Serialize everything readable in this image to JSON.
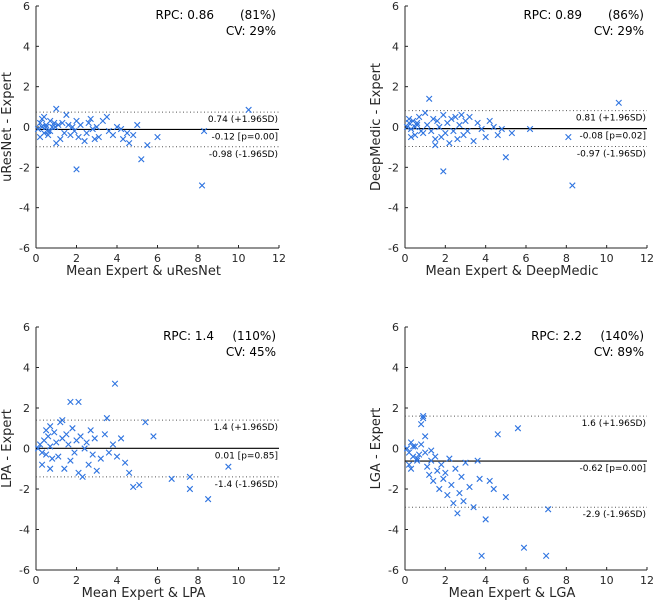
{
  "colors": {
    "marker": "#2F74E0",
    "axis": "#262626",
    "bias_line": "#000000"
  },
  "chart_data": [
    {
      "type": "scatter",
      "title": "",
      "xlabel": "Mean Expert & uResNet",
      "ylabel": "uResNet - Expert",
      "xlim": [
        0,
        12
      ],
      "ylim": [
        -6,
        6
      ],
      "xticks": [
        0,
        2,
        4,
        6,
        8,
        10,
        12
      ],
      "yticks": [
        -6,
        -4,
        -2,
        0,
        2,
        4,
        6
      ],
      "stats": {
        "rpc": "RPC: 0.86",
        "rpc_pct": "(81%)",
        "cv": "CV: 29%"
      },
      "upper": {
        "value": 0.74,
        "label": "0.74 (+1.96SD)"
      },
      "mean": {
        "value": -0.12,
        "label": "-0.12 [p=0.00]"
      },
      "lower": {
        "value": -0.98,
        "label": "-0.98 (-1.96SD)"
      },
      "series": [
        {
          "x": [
            0.1,
            0.2,
            0.3,
            0.4,
            0.5,
            0.6,
            0.7,
            0.8,
            0.2,
            0.3,
            0.5,
            0.6,
            0.9,
            1.0,
            1.1,
            1.2,
            0.4,
            0.7,
            1.3,
            1.4,
            1.5,
            1.6,
            1.7,
            1.8,
            1.0,
            0.95,
            1.9,
            2.0,
            2.1,
            2.2,
            2.4,
            2.5,
            2.6,
            2.7,
            2.8,
            2.9,
            3.0,
            3.1,
            3.3,
            3.5,
            3.6,
            3.8,
            4.0,
            4.2,
            4.3,
            4.5,
            4.6,
            4.8,
            5.0,
            5.2,
            5.5,
            6.0,
            8.3,
            8.2,
            10.5,
            2.0
          ],
          "y": [
            -0.1,
            0.2,
            0.0,
            -0.3,
            0.1,
            -0.2,
            0.3,
            0.0,
            -0.5,
            0.4,
            0.0,
            -0.4,
            0.2,
            0.9,
            0.1,
            -0.6,
            0.5,
            -0.2,
            0.2,
            -0.3,
            0.6,
            0.1,
            -0.4,
            0.0,
            -0.8,
            0.0,
            -0.2,
            0.3,
            -0.5,
            0.1,
            -0.7,
            -0.3,
            0.2,
            0.4,
            -0.1,
            -0.6,
            0.0,
            -0.5,
            0.3,
            0.5,
            -0.2,
            -0.4,
            0.0,
            -0.1,
            -0.6,
            -0.3,
            -0.8,
            -0.4,
            0.1,
            -1.6,
            -0.9,
            -0.5,
            -0.2,
            -2.9,
            0.85,
            -2.1
          ]
        }
      ]
    },
    {
      "type": "scatter",
      "title": "",
      "xlabel": "Mean Expert & DeepMedic",
      "ylabel": "DeepMedic - Expert",
      "xlim": [
        0,
        12
      ],
      "ylim": [
        -6,
        6
      ],
      "xticks": [
        0,
        2,
        4,
        6,
        8,
        10,
        12
      ],
      "yticks": [
        -6,
        -4,
        -2,
        0,
        2,
        4,
        6
      ],
      "stats": {
        "rpc": "RPC: 0.89",
        "rpc_pct": "(86%)",
        "cv": "CV: 29%"
      },
      "upper": {
        "value": 0.81,
        "label": "0.81 (+1.96SD)"
      },
      "mean": {
        "value": -0.08,
        "label": "-0.08 [p=0.02]"
      },
      "lower": {
        "value": -0.97,
        "label": "-0.97 (-1.96SD)"
      },
      "series": [
        {
          "x": [
            0.1,
            0.2,
            0.3,
            0.4,
            0.5,
            0.6,
            0.7,
            0.8,
            0.2,
            0.3,
            0.5,
            0.6,
            0.9,
            1.0,
            1.1,
            1.2,
            1.3,
            1.4,
            1.5,
            1.6,
            1.7,
            1.8,
            1.9,
            2.0,
            2.1,
            2.2,
            2.3,
            2.4,
            2.5,
            2.6,
            2.7,
            2.8,
            2.9,
            3.0,
            3.1,
            3.2,
            3.4,
            3.6,
            3.8,
            4.0,
            4.2,
            4.4,
            4.6,
            4.8,
            5.0,
            5.3,
            6.2,
            8.1,
            8.3,
            10.6,
            1.5,
            1.9
          ],
          "y": [
            0.0,
            0.2,
            -0.1,
            0.3,
            -0.4,
            0.1,
            0.5,
            -0.2,
            0.4,
            -0.5,
            0.0,
            0.2,
            -0.3,
            0.7,
            0.1,
            1.4,
            -0.2,
            0.4,
            -0.6,
            0.3,
            0.0,
            -0.5,
            0.6,
            -0.3,
            0.2,
            -0.8,
            0.4,
            -0.2,
            0.5,
            -0.6,
            0.1,
            0.6,
            -0.4,
            0.3,
            -0.2,
            0.5,
            -0.7,
            0.2,
            -0.1,
            -0.5,
            0.3,
            0.0,
            -0.4,
            -0.1,
            -1.5,
            -0.3,
            -0.1,
            -0.5,
            -2.9,
            1.2,
            -0.9,
            -2.2
          ]
        }
      ]
    },
    {
      "type": "scatter",
      "title": "",
      "xlabel": "Mean Expert & LPA",
      "ylabel": "LPA - Expert",
      "xlim": [
        0,
        12
      ],
      "ylim": [
        -6,
        6
      ],
      "xticks": [
        0,
        2,
        4,
        6,
        8,
        10,
        12
      ],
      "yticks": [
        -6,
        -4,
        -2,
        0,
        2,
        4,
        6
      ],
      "stats": {
        "rpc": "RPC: 1.4",
        "rpc_pct": "(110%)",
        "cv": "CV: 45%"
      },
      "upper": {
        "value": 1.4,
        "label": "1.4 (+1.96SD)"
      },
      "mean": {
        "value": 0.01,
        "label": "0.01 [p=0.85]"
      },
      "lower": {
        "value": -1.4,
        "label": "-1.4 (-1.96SD)"
      },
      "series": [
        {
          "x": [
            0.1,
            0.2,
            0.3,
            0.4,
            0.5,
            0.6,
            0.7,
            0.8,
            0.9,
            1.0,
            0.3,
            0.5,
            0.7,
            1.1,
            1.2,
            1.3,
            1.4,
            1.5,
            1.6,
            1.7,
            1.8,
            1.9,
            2.0,
            2.1,
            2.2,
            2.3,
            2.4,
            2.5,
            2.6,
            2.7,
            2.8,
            2.9,
            3.0,
            3.2,
            3.4,
            3.6,
            3.8,
            4.0,
            4.2,
            4.4,
            4.6,
            4.8,
            5.1,
            5.4,
            5.8,
            6.7,
            7.6,
            7.6,
            8.5,
            9.5,
            1.7,
            2.1,
            3.9,
            0.7,
            1.3,
            3.5
          ],
          "y": [
            0.0,
            0.2,
            -0.2,
            0.4,
            -0.3,
            0.6,
            0.1,
            -0.5,
            0.8,
            0.3,
            -0.8,
            0.9,
            1.1,
            -0.4,
            1.3,
            0.5,
            -1.0,
            0.7,
            0.2,
            -0.6,
            1.0,
            -0.2,
            0.4,
            -1.2,
            0.6,
            -1.4,
            0.0,
            0.3,
            -0.8,
            0.9,
            -0.3,
            0.5,
            -1.1,
            -0.5,
            0.7,
            -0.2,
            0.2,
            -0.4,
            0.5,
            -0.7,
            -1.2,
            -1.9,
            -1.8,
            1.3,
            0.6,
            -1.5,
            -2.0,
            -1.4,
            -2.5,
            -0.9,
            2.3,
            2.3,
            3.2,
            -1.0,
            1.4,
            1.5
          ]
        }
      ]
    },
    {
      "type": "scatter",
      "title": "",
      "xlabel": "Mean Expert & LGA",
      "ylabel": "LGA - Expert",
      "xlim": [
        0,
        12
      ],
      "ylim": [
        -6,
        6
      ],
      "xticks": [
        0,
        2,
        4,
        6,
        8,
        10,
        12
      ],
      "yticks": [
        -6,
        -4,
        -2,
        0,
        2,
        4,
        6
      ],
      "stats": {
        "rpc": "RPC: 2.2",
        "rpc_pct": "(140%)",
        "cv": "CV: 89%"
      },
      "upper": {
        "value": 1.6,
        "label": "1.6 (+1.96SD)"
      },
      "mean": {
        "value": -0.62,
        "label": "-0.62 [p=0.00]"
      },
      "lower": {
        "value": -2.9,
        "label": "-2.9 (-1.96SD)"
      },
      "series": [
        {
          "x": [
            0.1,
            0.2,
            0.3,
            0.4,
            0.5,
            0.6,
            0.7,
            0.8,
            0.2,
            0.3,
            0.4,
            0.6,
            0.8,
            0.9,
            1.0,
            1.1,
            1.2,
            1.3,
            1.4,
            1.5,
            1.6,
            1.7,
            1.8,
            1.9,
            2.0,
            2.1,
            2.2,
            2.3,
            2.4,
            2.5,
            2.6,
            2.7,
            2.8,
            2.9,
            3.0,
            3.2,
            3.4,
            3.6,
            3.8,
            4.0,
            4.2,
            4.4,
            4.6,
            5.0,
            5.6,
            5.9,
            7.0,
            7.1,
            0.9,
            1.0,
            3.7,
            1.3
          ],
          "y": [
            0.0,
            -0.2,
            0.3,
            -0.4,
            0.1,
            -0.6,
            -0.3,
            0.2,
            -0.8,
            -1.0,
            0.1,
            -0.5,
            1.2,
            1.5,
            -0.2,
            -0.9,
            -1.3,
            -0.6,
            -1.6,
            -0.4,
            -1.1,
            -2.0,
            -0.8,
            -1.5,
            -1.2,
            -2.3,
            -0.5,
            -1.8,
            -2.7,
            -1.0,
            -3.2,
            -2.2,
            -1.4,
            -2.6,
            -0.7,
            -1.9,
            -2.9,
            -0.6,
            -5.3,
            -3.5,
            -1.6,
            -2.0,
            0.7,
            -2.4,
            1.0,
            -4.9,
            -5.3,
            -3.0,
            1.6,
            0.6,
            -1.5,
            -0.1
          ]
        }
      ]
    }
  ]
}
